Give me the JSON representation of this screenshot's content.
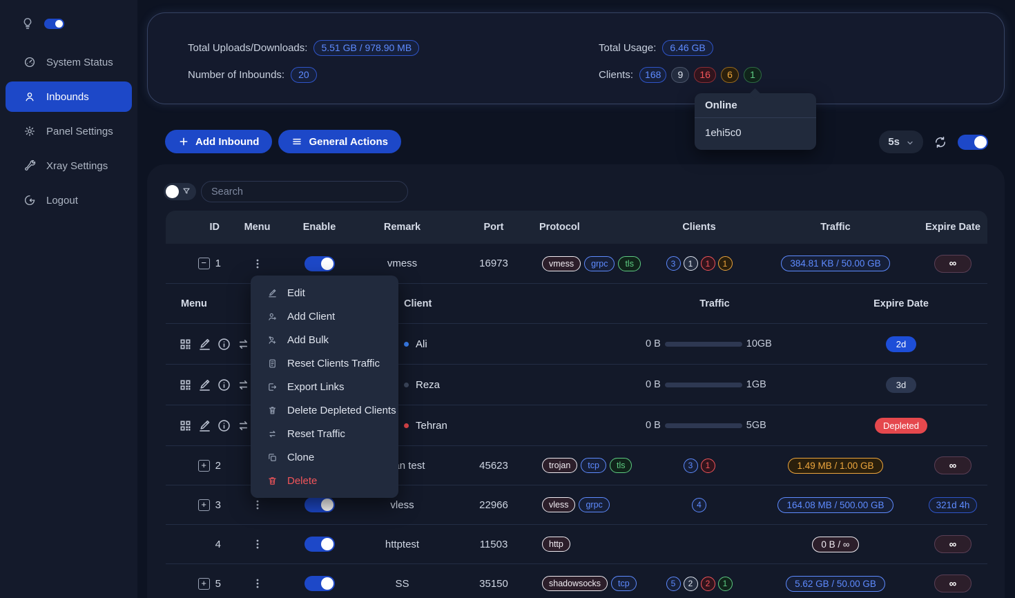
{
  "colors": {
    "accent": "#1d48c8",
    "danger": "#e5484d",
    "link_blue": "#5e8bff",
    "depleted_red": "#e5484d"
  },
  "sidebar": {
    "theme_switch_on": true,
    "items": [
      {
        "label": "System Status",
        "icon": "gauge-icon",
        "active": false
      },
      {
        "label": "Inbounds",
        "icon": "user-icon",
        "active": true
      },
      {
        "label": "Panel Settings",
        "icon": "gear-icon",
        "active": false
      },
      {
        "label": "Xray Settings",
        "icon": "wrench-icon",
        "active": false
      },
      {
        "label": "Logout",
        "icon": "logout-icon",
        "active": false
      }
    ]
  },
  "stats": {
    "uploads_label": "Total Uploads/Downloads:",
    "uploads_value": "5.51 GB / 978.90 MB",
    "inbounds_label": "Number of Inbounds:",
    "inbounds_value": "20",
    "usage_label": "Total Usage:",
    "usage_value": "6.46 GB",
    "clients_label": "Clients:",
    "client_badges": [
      {
        "value": "168",
        "color": "blue"
      },
      {
        "value": "9",
        "color": "gray"
      },
      {
        "value": "16",
        "color": "red"
      },
      {
        "value": "6",
        "color": "orange"
      },
      {
        "value": "1",
        "color": "green"
      }
    ]
  },
  "online_tooltip": {
    "title": "Online",
    "client": "1ehi5c0"
  },
  "toolbar": {
    "add_inbound_label": "Add Inbound",
    "general_actions_label": "General Actions",
    "refresh_interval": "5s",
    "auto_refresh_on": true
  },
  "search": {
    "placeholder": "Search",
    "filter_switch_on": false
  },
  "context_menu": {
    "items": [
      {
        "label": "Edit",
        "icon": "edit-icon",
        "danger": false
      },
      {
        "label": "Add Client",
        "icon": "user-plus-icon",
        "danger": false
      },
      {
        "label": "Add Bulk",
        "icon": "users-plus-icon",
        "danger": false
      },
      {
        "label": "Reset Clients Traffic",
        "icon": "file-reset-icon",
        "danger": false
      },
      {
        "label": "Export Links",
        "icon": "export-icon",
        "danger": false
      },
      {
        "label": "Delete Depleted Clients",
        "icon": "user-trash-icon",
        "danger": false
      },
      {
        "label": "Reset Traffic",
        "icon": "swap-icon",
        "danger": false
      },
      {
        "label": "Clone",
        "icon": "clone-icon",
        "danger": false
      },
      {
        "label": "Delete",
        "icon": "trash-icon",
        "danger": true
      }
    ]
  },
  "table": {
    "headers": [
      "ID",
      "Menu",
      "Enable",
      "Remark",
      "Port",
      "Protocol",
      "Clients",
      "Traffic",
      "Expire Date"
    ],
    "rows": [
      {
        "id": "1",
        "expand": "minus",
        "enabled": true,
        "remark": "vmess",
        "port": "16973",
        "tags": [
          {
            "label": "vmess",
            "color": "maroon"
          },
          {
            "label": "grpc",
            "color": "blue"
          },
          {
            "label": "tls",
            "color": "green"
          }
        ],
        "clients": [
          {
            "value": "3",
            "color": "blue"
          },
          {
            "value": "1",
            "color": "gray"
          },
          {
            "value": "1",
            "color": "red"
          },
          {
            "value": "1",
            "color": "orange"
          }
        ],
        "traffic": {
          "text": "384.81 KB / 50.00 GB",
          "color": "blue"
        },
        "expire": {
          "text": "∞",
          "style": "infinity"
        },
        "expanded": true
      },
      {
        "id": "2",
        "expand": "plus",
        "enabled": true,
        "remark": "trojan test",
        "port": "45623",
        "tags": [
          {
            "label": "trojan",
            "color": "maroon"
          },
          {
            "label": "tcp",
            "color": "blue"
          },
          {
            "label": "tls",
            "color": "green"
          }
        ],
        "clients": [
          {
            "value": "3",
            "color": "blue"
          },
          {
            "value": "1",
            "color": "red"
          }
        ],
        "traffic": {
          "text": "1.49 MB / 1.00 GB",
          "color": "orange"
        },
        "expire": {
          "text": "∞",
          "style": "infinity"
        }
      },
      {
        "id": "3",
        "expand": "plus",
        "enabled": true,
        "remark": "vless",
        "port": "22966",
        "tags": [
          {
            "label": "vless",
            "color": "maroon"
          },
          {
            "label": "grpc",
            "color": "blue"
          }
        ],
        "clients": [
          {
            "value": "4",
            "color": "blue"
          }
        ],
        "traffic": {
          "text": "164.08 MB / 500.00 GB",
          "color": "blue"
        },
        "expire": {
          "text": "321d 4h",
          "style": "blue-outline"
        }
      },
      {
        "id": "4",
        "expand": "none",
        "enabled": true,
        "remark": "httptest",
        "port": "11503",
        "tags": [
          {
            "label": "http",
            "color": "maroon"
          }
        ],
        "clients": [],
        "traffic": {
          "text": "0 B / ∞",
          "color": "maroon"
        },
        "expire": {
          "text": "∞",
          "style": "infinity"
        }
      },
      {
        "id": "5",
        "expand": "plus",
        "enabled": true,
        "remark": "SS",
        "port": "35150",
        "tags": [
          {
            "label": "shadowsocks",
            "color": "maroon"
          },
          {
            "label": "tcp",
            "color": "blue"
          }
        ],
        "clients": [
          {
            "value": "5",
            "color": "blue"
          },
          {
            "value": "2",
            "color": "gray"
          },
          {
            "value": "2",
            "color": "red"
          },
          {
            "value": "1",
            "color": "green"
          }
        ],
        "traffic": {
          "text": "5.62 GB / 50.00 GB",
          "color": "blue"
        },
        "expire": {
          "text": "∞",
          "style": "infinity"
        }
      }
    ],
    "client_subtable": {
      "headers": {
        "menu": "Menu",
        "client": "Client",
        "traffic": "Traffic",
        "expire": "Expire Date"
      },
      "menu_icons": [
        "qrcode-icon",
        "edit-icon",
        "info-icon",
        "swap-icon"
      ],
      "rows": [
        {
          "name": "Ali",
          "status_dot": "blue",
          "used": "0 B",
          "limit": "10GB",
          "expire": {
            "text": "2d",
            "style": "blue-solid"
          }
        },
        {
          "name": "Reza",
          "status_dot": "gray",
          "used": "0 B",
          "limit": "1GB",
          "expire": {
            "text": "3d",
            "style": "gray-solid"
          }
        },
        {
          "name": "Tehran",
          "status_dot": "red",
          "used": "0 B",
          "limit": "5GB",
          "expire": {
            "text": "Depleted",
            "style": "red-solid"
          }
        }
      ]
    }
  }
}
